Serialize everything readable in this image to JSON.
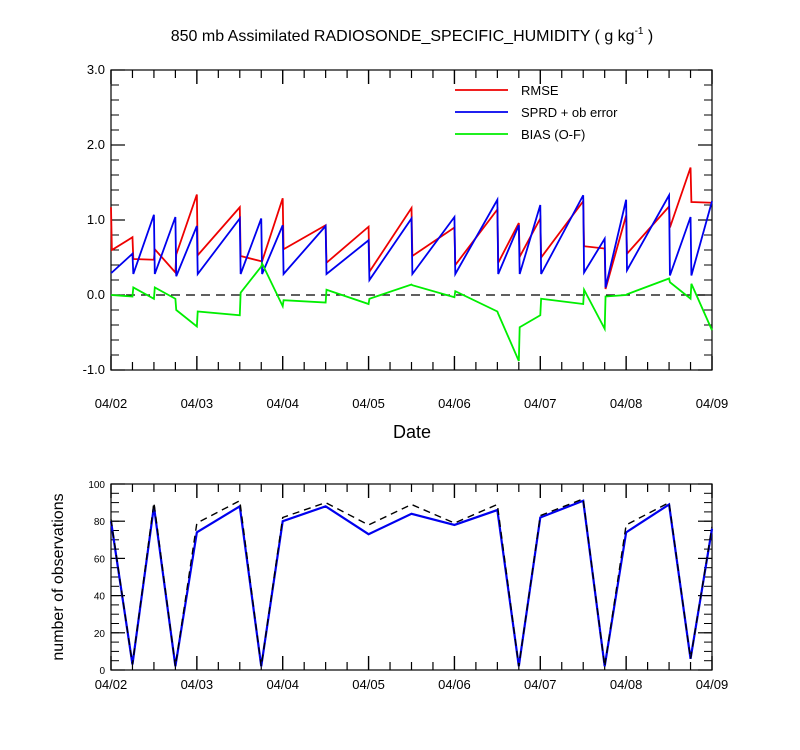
{
  "chart_data": [
    {
      "type": "line",
      "title": "850 mb Assimilated RADIOSONDE_SPECIFIC_HUMIDITY ( g kg",
      "title_sup": "-1",
      "title_end": " )",
      "xlabel": "Date",
      "ylabel": "",
      "ylim": [
        -1.0,
        3.0
      ],
      "xlim": [
        0,
        7
      ],
      "yticks": [
        -1.0,
        0.0,
        1.0,
        2.0,
        3.0
      ],
      "ytick_labels": [
        "-1.0",
        "0.0",
        "1.0",
        "2.0",
        "3.0"
      ],
      "xtick_labels": [
        "04/02",
        "04/03",
        "04/04",
        "04/05",
        "04/06",
        "04/07",
        "04/08",
        "04/09"
      ],
      "grid": false,
      "legend_position": "top-right",
      "zero_line": "dashed",
      "series": [
        {
          "name": "RMSE",
          "color": "#ee0000",
          "x": [
            0,
            0.01,
            0.25,
            0.26,
            0.5,
            0.51,
            0.75,
            0.76,
            1.0,
            1.01,
            1.5,
            1.51,
            1.75,
            1.76,
            2.0,
            2.01,
            2.5,
            2.51,
            3.0,
            3.01,
            3.5,
            3.51,
            4.0,
            4.01,
            4.5,
            4.51,
            4.75,
            4.76,
            5.0,
            5.01,
            5.5,
            5.51,
            5.75,
            5.76,
            6.0,
            6.01,
            6.5,
            6.51,
            6.75,
            6.76,
            7.0
          ],
          "values": [
            1.17,
            0.6,
            0.77,
            0.48,
            0.47,
            0.61,
            0.3,
            0.54,
            1.34,
            0.53,
            1.17,
            0.52,
            0.45,
            0.45,
            1.29,
            0.61,
            0.93,
            0.43,
            0.91,
            0.31,
            1.16,
            0.52,
            0.9,
            0.4,
            1.14,
            0.43,
            0.96,
            0.51,
            1.02,
            0.5,
            1.25,
            0.65,
            0.62,
            0.08,
            1.06,
            0.55,
            1.18,
            0.9,
            1.7,
            1.24,
            1.23
          ]
        },
        {
          "name": "SPRD + ob error",
          "color": "#0000ee",
          "x": [
            0,
            0.01,
            0.25,
            0.26,
            0.5,
            0.51,
            0.75,
            0.76,
            1.0,
            1.01,
            1.5,
            1.51,
            1.75,
            1.76,
            2.0,
            2.01,
            2.5,
            2.51,
            3.0,
            3.01,
            3.5,
            3.51,
            4.0,
            4.01,
            4.5,
            4.51,
            4.75,
            4.76,
            5.0,
            5.01,
            5.5,
            5.51,
            5.75,
            5.76,
            6.0,
            6.01,
            6.5,
            6.51,
            6.75,
            6.76,
            7.0
          ],
          "values": [
            0.3,
            0.3,
            0.55,
            0.28,
            1.07,
            0.28,
            1.04,
            0.25,
            0.92,
            0.28,
            1.02,
            0.28,
            1.02,
            0.28,
            0.93,
            0.28,
            0.92,
            0.28,
            0.73,
            0.2,
            1.02,
            0.28,
            1.04,
            0.28,
            1.27,
            0.28,
            0.93,
            0.28,
            1.2,
            0.28,
            1.33,
            0.3,
            0.75,
            0.1,
            1.27,
            0.33,
            1.33,
            0.26,
            1.04,
            0.26,
            1.25
          ]
        },
        {
          "name": "BIAS (O-F)",
          "color": "#00ee00",
          "x": [
            0,
            0.25,
            0.26,
            0.5,
            0.51,
            0.75,
            0.76,
            1.0,
            1.01,
            1.5,
            1.51,
            1.75,
            1.76,
            2.0,
            2.01,
            2.5,
            2.51,
            3.0,
            3.01,
            3.5,
            3.51,
            4.0,
            4.01,
            4.5,
            4.51,
            4.75,
            4.76,
            5.0,
            5.01,
            5.5,
            5.51,
            5.75,
            5.76,
            6.0,
            6.01,
            6.5,
            6.51,
            6.75,
            6.76,
            7.0
          ],
          "values": [
            0.0,
            -0.02,
            0.1,
            -0.05,
            0.1,
            -0.05,
            -0.2,
            -0.42,
            -0.22,
            -0.27,
            0.03,
            0.38,
            0.42,
            -0.15,
            -0.07,
            -0.1,
            0.07,
            -0.12,
            -0.05,
            0.14,
            0.13,
            -0.03,
            0.05,
            -0.22,
            -0.25,
            -0.88,
            -0.43,
            -0.27,
            -0.05,
            -0.12,
            0.07,
            -0.45,
            -0.02,
            0.0,
            0.01,
            0.22,
            0.17,
            -0.05,
            0.15,
            -0.47
          ]
        }
      ]
    },
    {
      "type": "line",
      "title": "",
      "xlabel": "",
      "ylabel": "number of observations",
      "ylim": [
        0,
        100
      ],
      "xlim": [
        0,
        7
      ],
      "yticks": [
        0,
        20,
        40,
        60,
        80,
        100
      ],
      "ytick_labels": [
        "0",
        "20",
        "40",
        "60",
        "80",
        "100"
      ],
      "xtick_labels": [
        "04/02",
        "04/03",
        "04/04",
        "04/05",
        "04/06",
        "04/07",
        "04/08",
        "04/09"
      ],
      "grid": false,
      "series": [
        {
          "color": "#0000ee",
          "style": "solid",
          "x": [
            0,
            0.25,
            0.5,
            0.75,
            1.0,
            1.5,
            1.75,
            2.0,
            2.5,
            3.0,
            3.5,
            4.0,
            4.5,
            4.75,
            5.0,
            5.5,
            5.75,
            6.0,
            6.5,
            6.75,
            7.0
          ],
          "values": [
            80,
            3,
            88,
            2,
            74,
            88,
            2,
            80,
            88,
            73,
            84,
            78,
            86,
            2,
            82,
            91,
            2,
            74,
            89,
            6,
            76
          ]
        },
        {
          "color": "#000000",
          "style": "dashed",
          "x": [
            0,
            0.25,
            0.5,
            0.75,
            1.0,
            1.5,
            1.75,
            2.0,
            2.5,
            3.0,
            3.5,
            4.0,
            4.5,
            4.75,
            5.0,
            5.5,
            5.75,
            6.0,
            6.5,
            6.75,
            7.0
          ],
          "values": [
            81,
            3,
            90,
            2,
            79,
            91,
            2,
            82,
            90,
            78,
            89,
            79,
            89,
            2,
            83,
            92,
            2,
            78,
            90,
            6,
            77
          ]
        }
      ]
    }
  ]
}
